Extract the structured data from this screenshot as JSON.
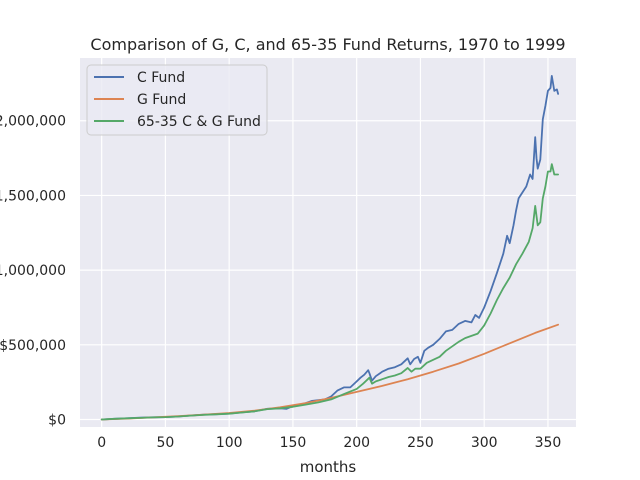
{
  "chart_data": {
    "type": "line",
    "title": "Comparison of G, C, and 65-35 Fund Returns, 1970 to 1999",
    "xlabel": "months",
    "ylabel": "",
    "xlim": [
      -17,
      372
    ],
    "ylim": [
      -50000,
      2420000
    ],
    "x_ticks": [
      0,
      50,
      100,
      150,
      200,
      250,
      300,
      350
    ],
    "x_tick_labels": [
      "0",
      "50",
      "100",
      "150",
      "200",
      "250",
      "300",
      "350"
    ],
    "y_ticks": [
      0,
      500000,
      1000000,
      1500000,
      2000000
    ],
    "y_tick_labels": [
      "$0",
      "$500,000",
      "1,000,000",
      "1,500,000",
      "2,000,000"
    ],
    "grid": true,
    "legend_position": "upper-left",
    "series": [
      {
        "name": "C Fund",
        "color": "#4c72b0",
        "x": [
          0,
          10,
          20,
          30,
          40,
          50,
          60,
          70,
          80,
          90,
          100,
          110,
          120,
          130,
          140,
          145,
          150,
          155,
          160,
          165,
          170,
          175,
          180,
          185,
          190,
          195,
          200,
          203,
          206,
          209,
          210,
          212,
          215,
          220,
          225,
          230,
          235,
          240,
          242,
          245,
          248,
          250,
          253,
          256,
          260,
          265,
          270,
          275,
          280,
          285,
          290,
          293,
          296,
          300,
          305,
          310,
          315,
          318,
          320,
          323,
          325,
          327,
          330,
          333,
          336,
          338,
          340,
          341,
          342,
          344,
          346,
          348,
          350,
          352,
          353,
          355,
          357,
          358
        ],
        "y": [
          0,
          5000,
          8000,
          12000,
          15000,
          16000,
          20000,
          27000,
          33000,
          36000,
          40000,
          48000,
          55000,
          72000,
          75000,
          72000,
          90000,
          100000,
          110000,
          125000,
          130000,
          135000,
          155000,
          195000,
          215000,
          215000,
          255000,
          280000,
          300000,
          330000,
          310000,
          260000,
          290000,
          320000,
          340000,
          350000,
          370000,
          410000,
          370000,
          405000,
          420000,
          380000,
          460000,
          480000,
          500000,
          540000,
          590000,
          600000,
          640000,
          660000,
          650000,
          700000,
          680000,
          750000,
          860000,
          980000,
          1110000,
          1230000,
          1180000,
          1300000,
          1400000,
          1480000,
          1520000,
          1560000,
          1640000,
          1610000,
          1890000,
          1750000,
          1680000,
          1740000,
          2010000,
          2100000,
          2200000,
          2220000,
          2300000,
          2200000,
          2210000,
          2180000
        ]
      },
      {
        "name": "G Fund",
        "color": "#dd8452",
        "x": [
          0,
          20,
          40,
          60,
          80,
          100,
          120,
          140,
          160,
          180,
          200,
          220,
          240,
          260,
          280,
          300,
          320,
          340,
          358
        ],
        "y": [
          0,
          6000,
          14000,
          22000,
          32000,
          44000,
          60000,
          82000,
          110000,
          145000,
          185000,
          225000,
          270000,
          320000,
          375000,
          440000,
          510000,
          580000,
          635000
        ]
      },
      {
        "name": "65-35 C & G Fund",
        "color": "#55a868",
        "x": [
          0,
          10,
          20,
          30,
          40,
          50,
          60,
          70,
          80,
          90,
          100,
          110,
          120,
          130,
          140,
          150,
          160,
          170,
          180,
          190,
          200,
          205,
          210,
          212,
          215,
          220,
          225,
          230,
          235,
          240,
          243,
          246,
          250,
          255,
          260,
          265,
          270,
          275,
          280,
          285,
          290,
          295,
          300,
          305,
          310,
          315,
          320,
          325,
          330,
          335,
          338,
          340,
          342,
          344,
          346,
          348,
          350,
          352,
          353,
          355,
          358
        ],
        "y": [
          0,
          5000,
          8000,
          11000,
          14000,
          16000,
          20000,
          26000,
          31000,
          35000,
          39000,
          47000,
          55000,
          70000,
          75000,
          85000,
          100000,
          115000,
          135000,
          170000,
          205000,
          240000,
          280000,
          240000,
          255000,
          270000,
          285000,
          295000,
          310000,
          345000,
          320000,
          340000,
          340000,
          380000,
          400000,
          420000,
          460000,
          490000,
          520000,
          545000,
          560000,
          575000,
          630000,
          710000,
          800000,
          880000,
          950000,
          1040000,
          1110000,
          1190000,
          1280000,
          1430000,
          1300000,
          1320000,
          1480000,
          1560000,
          1660000,
          1660000,
          1710000,
          1640000,
          1640000
        ]
      }
    ]
  }
}
